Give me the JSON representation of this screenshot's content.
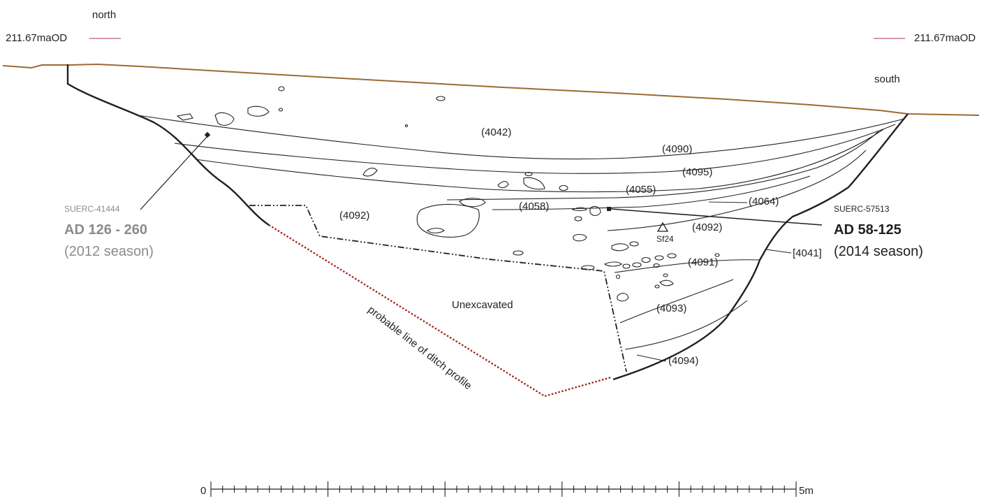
{
  "orientation": {
    "north": "north",
    "south": "south"
  },
  "datum": {
    "left": "211.67maOD",
    "right": "211.67maOD",
    "marker_color": "#b0335a"
  },
  "colors": {
    "ground": "#9b6a33",
    "profile": "#a3271c",
    "ink": "#231f20",
    "grey_label": "#8c8c8c"
  },
  "contexts": {
    "c4042": "(4042)",
    "c4090": "(4090)",
    "c4095": "(4095)",
    "c4055": "(4055)",
    "c4064": "(4064)",
    "c4058": "(4058)",
    "c4092_left": "(4092)",
    "c4092_right": "(4092)",
    "c4041": "[4041]",
    "c4091": "(4091)",
    "c4093": "(4093)",
    "c4094": "(4094)"
  },
  "dates": {
    "left": {
      "lab_code": "SUERC-41444",
      "range": "AD 126 - 260",
      "season": "(2012 season)"
    },
    "right": {
      "lab_code": "SUERC-57513",
      "range": "AD 58-125",
      "season": "(2014 season)"
    }
  },
  "small_find": {
    "label": "Sf24"
  },
  "areas": {
    "unexcavated": "Unexcavated",
    "profile_line": "probable line of ditch profile"
  },
  "scale": {
    "start": "0",
    "end": "5m",
    "major_divisions": 5,
    "minor_per_major": 10
  }
}
